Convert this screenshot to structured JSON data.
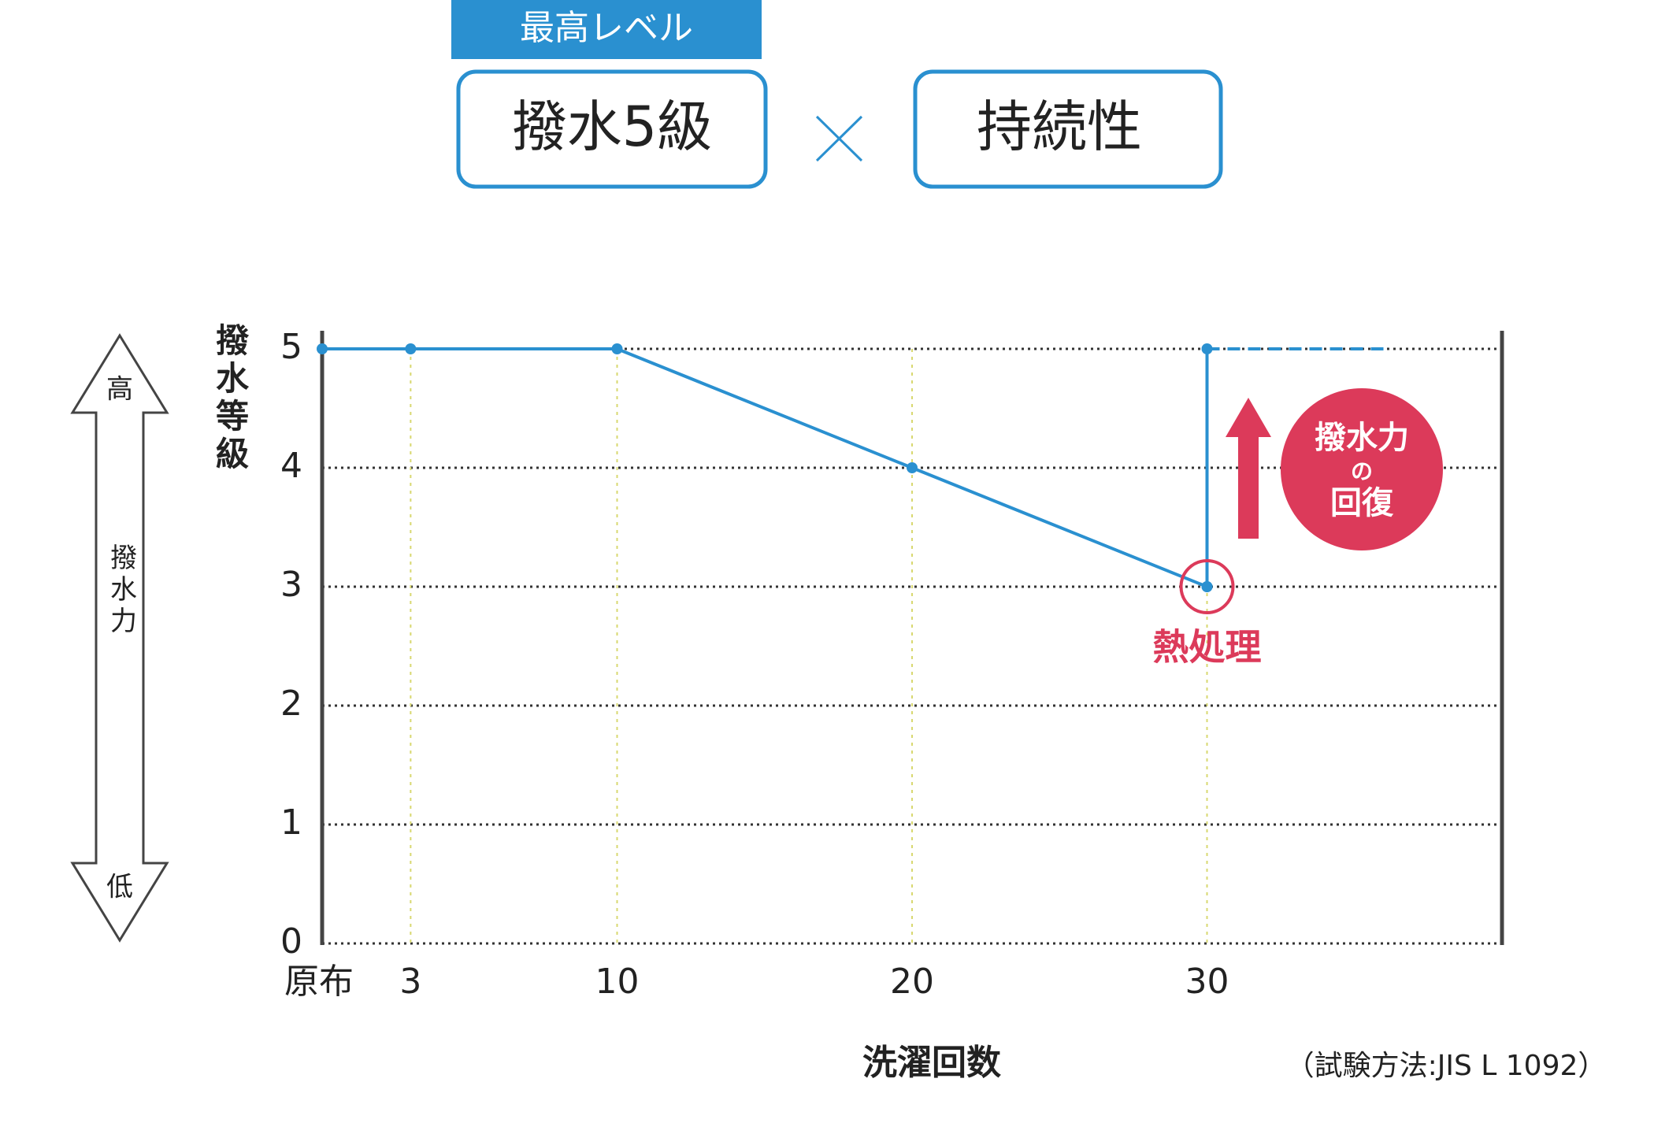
{
  "header": {
    "tag": "最高レベル",
    "left": "撥水5級",
    "right": "持続性"
  },
  "scale_labels": {
    "high": "高",
    "middle": "撥水力",
    "low": "低"
  },
  "chart_data": {
    "type": "line",
    "ylabel": "撥水等級",
    "xlabel": "洗濯回数",
    "note": "（試験方法:JIS L 1092）",
    "annotation": "熱処理",
    "badge": [
      "撥水力",
      "の",
      "回復"
    ],
    "xlim": [
      0,
      40
    ],
    "xticks": [
      {
        "value": 0,
        "label": "原布"
      },
      3,
      10,
      20,
      30
    ],
    "ylim": [
      0,
      5
    ],
    "yticks": [
      0,
      1,
      2,
      3,
      4,
      5
    ],
    "grid": true,
    "series": [
      {
        "color": "#2a90d0",
        "x": [
          0,
          3,
          10,
          20,
          30
        ],
        "values": [
          5,
          5,
          5,
          4,
          3
        ],
        "markers": true,
        "dash": false
      },
      {
        "color": "#2a90d0",
        "x": [
          30,
          30
        ],
        "values": [
          3,
          5
        ],
        "markers": true,
        "dash": false
      },
      {
        "color": "#2a90d0",
        "x": [
          30,
          36
        ],
        "values": [
          5,
          5
        ],
        "markers": false,
        "dash": true
      }
    ]
  }
}
